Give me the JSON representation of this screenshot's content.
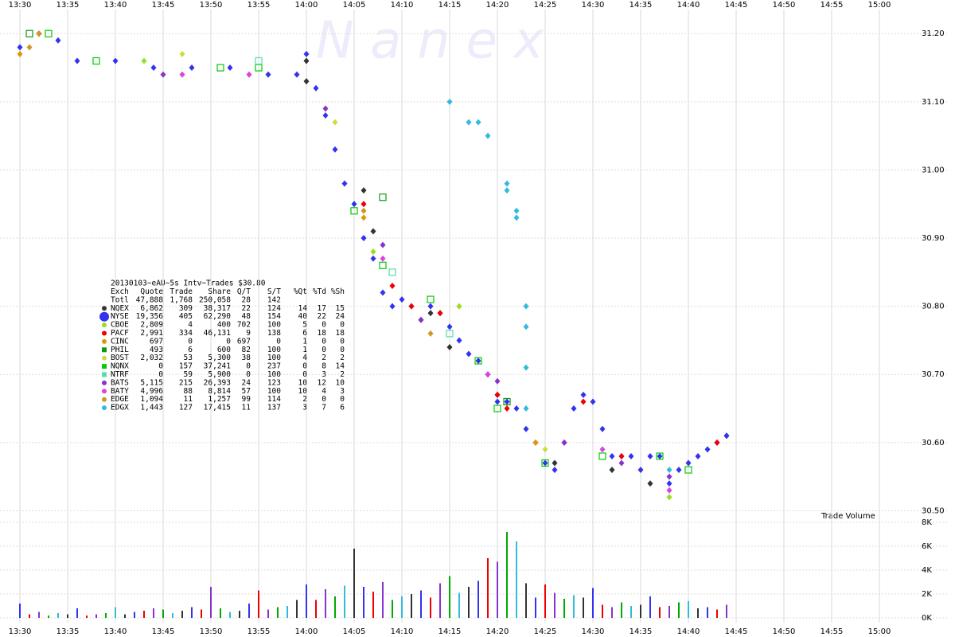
{
  "chart_data": [
    {
      "type": "scatter",
      "watermark": "N a n e x",
      "xlim": [
        "13:30",
        "15:00"
      ],
      "xticks": [
        "13:30",
        "13:35",
        "13:40",
        "13:45",
        "13:50",
        "13:55",
        "14:00",
        "14:05",
        "14:10",
        "14:15",
        "14:20",
        "14:25",
        "14:30",
        "14:35",
        "14:40",
        "14:45",
        "14:50",
        "14:55",
        "15:00"
      ],
      "ylim": [
        30.49,
        31.24
      ],
      "yticks": [
        {
          "value": 30.5,
          "label": "30.50"
        },
        {
          "value": 30.6,
          "label": "30.60"
        },
        {
          "value": 30.7,
          "label": "30.70"
        },
        {
          "value": 30.8,
          "label": "30.80"
        },
        {
          "value": 30.9,
          "label": "30.90"
        },
        {
          "value": 31.0,
          "label": "31.00"
        },
        {
          "value": 31.1,
          "label": "31.10"
        },
        {
          "value": 31.2,
          "label": "31.20"
        }
      ],
      "grid": true,
      "legend_table": {
        "title": "20130103~eAU~5s Intv~Trades $30.80",
        "header": [
          "Exch",
          "Quote",
          "Trade",
          "Share",
          "Q/T",
          "S/T",
          "%Qt",
          "%Td",
          "%Sh"
        ],
        "total": [
          "Totl",
          "47,888",
          "1,768",
          "250,058",
          "28",
          "142"
        ]
      },
      "series": [
        {
          "name": "NQEX",
          "color": "#333333",
          "marker": "diamond",
          "stats": [
            "6,862",
            "309",
            "38,317",
            "22",
            "124",
            "14",
            "17",
            "15"
          ],
          "x": [
            "14:00",
            "14:00",
            "14:06",
            "14:07",
            "14:13",
            "14:15",
            "14:20",
            "14:26",
            "14:32",
            "14:36",
            "14:44"
          ],
          "values": [
            31.16,
            31.13,
            30.97,
            30.91,
            30.79,
            30.74,
            30.67,
            30.57,
            30.56,
            30.54,
            30.61
          ]
        },
        {
          "name": "NYSE",
          "color": "#3333ee",
          "marker": "diamond",
          "stats": [
            "19,356",
            "405",
            "62,290",
            "48",
            "154",
            "40",
            "22",
            "24"
          ],
          "x": [
            "13:30",
            "13:32",
            "13:34",
            "13:36",
            "13:40",
            "13:44",
            "13:48",
            "13:52",
            "13:56",
            "13:59",
            "14:00",
            "14:01",
            "14:02",
            "14:03",
            "14:04",
            "14:05",
            "14:06",
            "14:07",
            "14:08",
            "14:09",
            "14:10",
            "14:11",
            "14:12",
            "14:13",
            "14:14",
            "14:15",
            "14:16",
            "14:17",
            "14:18",
            "14:19",
            "14:20",
            "14:21",
            "14:22",
            "14:23",
            "14:24",
            "14:25",
            "14:26",
            "14:27",
            "14:28",
            "14:29",
            "14:30",
            "14:31",
            "14:32",
            "14:33",
            "14:34",
            "14:35",
            "14:36",
            "14:37",
            "14:38",
            "14:39",
            "14:40",
            "14:41",
            "14:42",
            "14:43",
            "14:44"
          ],
          "values": [
            31.18,
            31.2,
            31.19,
            31.16,
            31.16,
            31.15,
            31.15,
            31.15,
            31.14,
            31.14,
            31.17,
            31.12,
            31.08,
            31.03,
            30.98,
            30.95,
            30.9,
            30.87,
            30.82,
            30.8,
            30.81,
            30.8,
            30.78,
            30.8,
            30.79,
            30.77,
            30.75,
            30.73,
            30.72,
            30.7,
            30.66,
            30.66,
            30.65,
            30.62,
            30.6,
            30.57,
            30.56,
            30.6,
            30.65,
            30.67,
            30.66,
            30.62,
            30.58,
            30.58,
            30.58,
            30.56,
            30.58,
            30.58,
            30.54,
            30.56,
            30.57,
            30.58,
            30.59,
            30.6,
            30.61
          ]
        },
        {
          "name": "CBOE",
          "color": "#99dd22",
          "marker": "diamond",
          "stats": [
            "2,809",
            "4",
            "400",
            "702",
            "100",
            "5",
            "0",
            "0"
          ],
          "x": [
            "13:43",
            "14:07",
            "14:16",
            "14:38"
          ],
          "values": [
            31.16,
            30.88,
            30.8,
            30.52
          ]
        },
        {
          "name": "PACF",
          "color": "#ee0000",
          "marker": "diamond",
          "stats": [
            "2,991",
            "334",
            "46,131",
            "9",
            "138",
            "6",
            "18",
            "18"
          ],
          "x": [
            "13:32",
            "14:06",
            "14:09",
            "14:11",
            "14:14",
            "14:20",
            "14:21",
            "14:29",
            "14:33",
            "14:43"
          ],
          "values": [
            31.2,
            30.95,
            30.83,
            30.8,
            30.79,
            30.67,
            30.65,
            30.66,
            30.58,
            30.6
          ]
        },
        {
          "name": "CINC",
          "color": "#dd9900",
          "marker": "diamond",
          "stats": [
            "697",
            "0",
            "0",
            "697",
            "0",
            "1",
            "0",
            "0"
          ],
          "x": [
            "13:30",
            "14:06",
            "14:24"
          ],
          "values": [
            31.17,
            30.93,
            30.6
          ]
        },
        {
          "name": "PHIL",
          "color": "#119911",
          "marker": "square",
          "stats": [
            "493",
            "6",
            "600",
            "82",
            "100",
            "1",
            "0",
            "0"
          ],
          "x": [
            "13:31",
            "14:08",
            "14:21"
          ],
          "values": [
            31.2,
            30.96,
            30.66
          ]
        },
        {
          "name": "BOST",
          "color": "#ccdd44",
          "marker": "diamond",
          "stats": [
            "2,032",
            "53",
            "5,300",
            "38",
            "100",
            "4",
            "2",
            "2"
          ],
          "x": [
            "13:47",
            "14:03",
            "14:25"
          ],
          "values": [
            31.17,
            31.07,
            30.59
          ]
        },
        {
          "name": "NQNX",
          "color": "#00cc00",
          "marker": "square",
          "stats": [
            "0",
            "157",
            "37,241",
            "0",
            "237",
            "0",
            "8",
            "14"
          ],
          "x": [
            "13:33",
            "13:38",
            "13:51",
            "13:55",
            "14:05",
            "14:08",
            "14:13",
            "14:18",
            "14:20",
            "14:25",
            "14:31",
            "14:37",
            "14:40"
          ],
          "values": [
            31.2,
            31.16,
            31.15,
            31.15,
            30.94,
            30.86,
            30.81,
            30.72,
            30.65,
            30.57,
            30.58,
            30.58,
            30.56
          ]
        },
        {
          "name": "NTRF",
          "color": "#55ddaa",
          "marker": "square",
          "stats": [
            "0",
            "59",
            "5,900",
            "0",
            "100",
            "0",
            "3",
            "2"
          ],
          "x": [
            "13:55",
            "14:09",
            "14:15"
          ],
          "values": [
            31.16,
            30.85,
            30.76
          ]
        },
        {
          "name": "BATS",
          "color": "#8833cc",
          "marker": "diamond",
          "stats": [
            "5,115",
            "215",
            "26,393",
            "24",
            "123",
            "10",
            "12",
            "10"
          ],
          "x": [
            "13:45",
            "14:02",
            "14:08",
            "14:12",
            "14:20",
            "14:27",
            "14:33",
            "14:38"
          ],
          "values": [
            31.14,
            31.09,
            30.89,
            30.78,
            30.69,
            30.6,
            30.57,
            30.55
          ]
        },
        {
          "name": "BATY",
          "color": "#dd44dd",
          "marker": "diamond",
          "stats": [
            "4,996",
            "88",
            "8,814",
            "57",
            "100",
            "10",
            "4",
            "3"
          ],
          "x": [
            "13:47",
            "13:54",
            "14:08",
            "14:19",
            "14:31",
            "14:38"
          ],
          "values": [
            31.14,
            31.14,
            30.87,
            30.7,
            30.59,
            30.53
          ]
        },
        {
          "name": "EDGE",
          "color": "#cc9922",
          "marker": "diamond",
          "stats": [
            "1,094",
            "11",
            "1,257",
            "99",
            "114",
            "2",
            "0",
            "0"
          ],
          "x": [
            "13:31",
            "13:32",
            "14:06",
            "14:13"
          ],
          "values": [
            31.18,
            31.2,
            30.94,
            30.76
          ]
        },
        {
          "name": "EDGX",
          "color": "#33bbdd",
          "marker": "diamond",
          "stats": [
            "1,443",
            "127",
            "17,415",
            "11",
            "137",
            "3",
            "7",
            "6"
          ],
          "x": [
            "14:15",
            "14:17",
            "14:18",
            "14:19",
            "14:21",
            "14:21",
            "14:22",
            "14:22",
            "14:23",
            "14:23",
            "14:23",
            "14:23",
            "14:38"
          ],
          "values": [
            31.1,
            31.07,
            31.07,
            31.05,
            30.98,
            30.97,
            30.94,
            30.93,
            30.8,
            30.77,
            30.71,
            30.65,
            30.56
          ]
        }
      ]
    },
    {
      "type": "bar",
      "title": "Trade Volume",
      "xlim": [
        "13:30",
        "15:00"
      ],
      "xticks": [
        "13:30",
        "13:35",
        "13:40",
        "13:45",
        "13:50",
        "13:55",
        "14:00",
        "14:05",
        "14:10",
        "14:15",
        "14:20",
        "14:25",
        "14:30",
        "14:35",
        "14:40",
        "14:45",
        "14:50",
        "14:55",
        "15:00"
      ],
      "ylim": [
        0,
        8000
      ],
      "yticks": [
        {
          "value": 0,
          "label": "0K"
        },
        {
          "value": 2000,
          "label": "2K"
        },
        {
          "value": 4000,
          "label": "4K"
        },
        {
          "value": 6000,
          "label": "6K"
        },
        {
          "value": 8000,
          "label": "8K"
        }
      ],
      "color_cycle": [
        "#3333ee",
        "#ee0000",
        "#8833cc",
        "#00aa00",
        "#33bbdd",
        "#333333"
      ],
      "x": [
        "13:30",
        "13:31",
        "13:32",
        "13:33",
        "13:34",
        "13:35",
        "13:36",
        "13:37",
        "13:38",
        "13:39",
        "13:40",
        "13:41",
        "13:42",
        "13:43",
        "13:44",
        "13:45",
        "13:46",
        "13:47",
        "13:48",
        "13:49",
        "13:50",
        "13:51",
        "13:52",
        "13:53",
        "13:54",
        "13:55",
        "13:56",
        "13:57",
        "13:58",
        "13:59",
        "14:00",
        "14:01",
        "14:02",
        "14:03",
        "14:04",
        "14:05",
        "14:06",
        "14:07",
        "14:08",
        "14:09",
        "14:10",
        "14:11",
        "14:12",
        "14:13",
        "14:14",
        "14:15",
        "14:16",
        "14:17",
        "14:18",
        "14:19",
        "14:20",
        "14:21",
        "14:22",
        "14:23",
        "14:24",
        "14:25",
        "14:26",
        "14:27",
        "14:28",
        "14:29",
        "14:30",
        "14:31",
        "14:32",
        "14:33",
        "14:34",
        "14:35",
        "14:36",
        "14:37",
        "14:38",
        "14:39",
        "14:40",
        "14:41",
        "14:42",
        "14:43",
        "14:44"
      ],
      "values": [
        1200,
        300,
        500,
        200,
        400,
        300,
        800,
        200,
        300,
        400,
        900,
        300,
        500,
        600,
        800,
        700,
        400,
        600,
        900,
        700,
        2600,
        800,
        500,
        600,
        1200,
        2300,
        700,
        900,
        1000,
        1500,
        2800,
        1500,
        2400,
        1800,
        2700,
        5800,
        2600,
        2200,
        3000,
        1500,
        1800,
        2000,
        2300,
        1700,
        2900,
        3500,
        2100,
        2600,
        3100,
        5000,
        4700,
        7200,
        6400,
        2900,
        1700,
        2800,
        2100,
        1600,
        1900,
        1700,
        2500,
        1100,
        900,
        1300,
        1000,
        1100,
        1800,
        900,
        1000,
        1300,
        1400,
        800,
        900,
        700,
        1100
      ]
    }
  ]
}
